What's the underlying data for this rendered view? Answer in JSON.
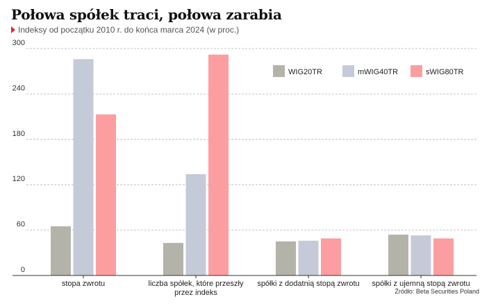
{
  "header": {
    "title": "Połowa spółek traci, połowa zarabia",
    "subtitle": "Indeksy od początku 2010 r. do końca marca 2024 (w proc.)"
  },
  "footer": {
    "source": "Źródło: Beta Securities Poland"
  },
  "colors": {
    "accent": "#e3262b",
    "grid": "#b5b5b5",
    "axis": "#333333"
  },
  "chart_data": {
    "type": "bar",
    "title": "Połowa spółek traci, połowa zarabia",
    "subtitle": "Indeksy od początku 2010 r. do końca marca 2024 (w proc.)",
    "categories": [
      "stopa zwrotu",
      "liczba spółek, które przeszły przez indeks",
      "spółki z dodatnią stopą zwrotu",
      "spółki z ujemną stopą zwrotu"
    ],
    "category_lines": [
      [
        "stopa zwrotu"
      ],
      [
        "liczba spółek, które przeszły",
        "przez indeks"
      ],
      [
        "spółki z dodatnią stopą zwrotu"
      ],
      [
        "spółki z ujemną stopą zwrotu"
      ]
    ],
    "series": [
      {
        "name": "WIG20TR",
        "color": "#b3b3aa",
        "values": [
          65,
          43,
          45,
          54
        ]
      },
      {
        "name": "mWIG40TR",
        "color": "#c5cad9",
        "values": [
          286,
          134,
          46,
          53
        ]
      },
      {
        "name": "sWIG80TR",
        "color": "#fc9ea0",
        "values": [
          213,
          292,
          49,
          49
        ]
      }
    ],
    "ylim": [
      0,
      300
    ],
    "yticks": [
      0,
      60,
      120,
      180,
      240,
      300
    ],
    "xlabel": "",
    "ylabel": "",
    "grid": true,
    "legend": "top-right"
  }
}
